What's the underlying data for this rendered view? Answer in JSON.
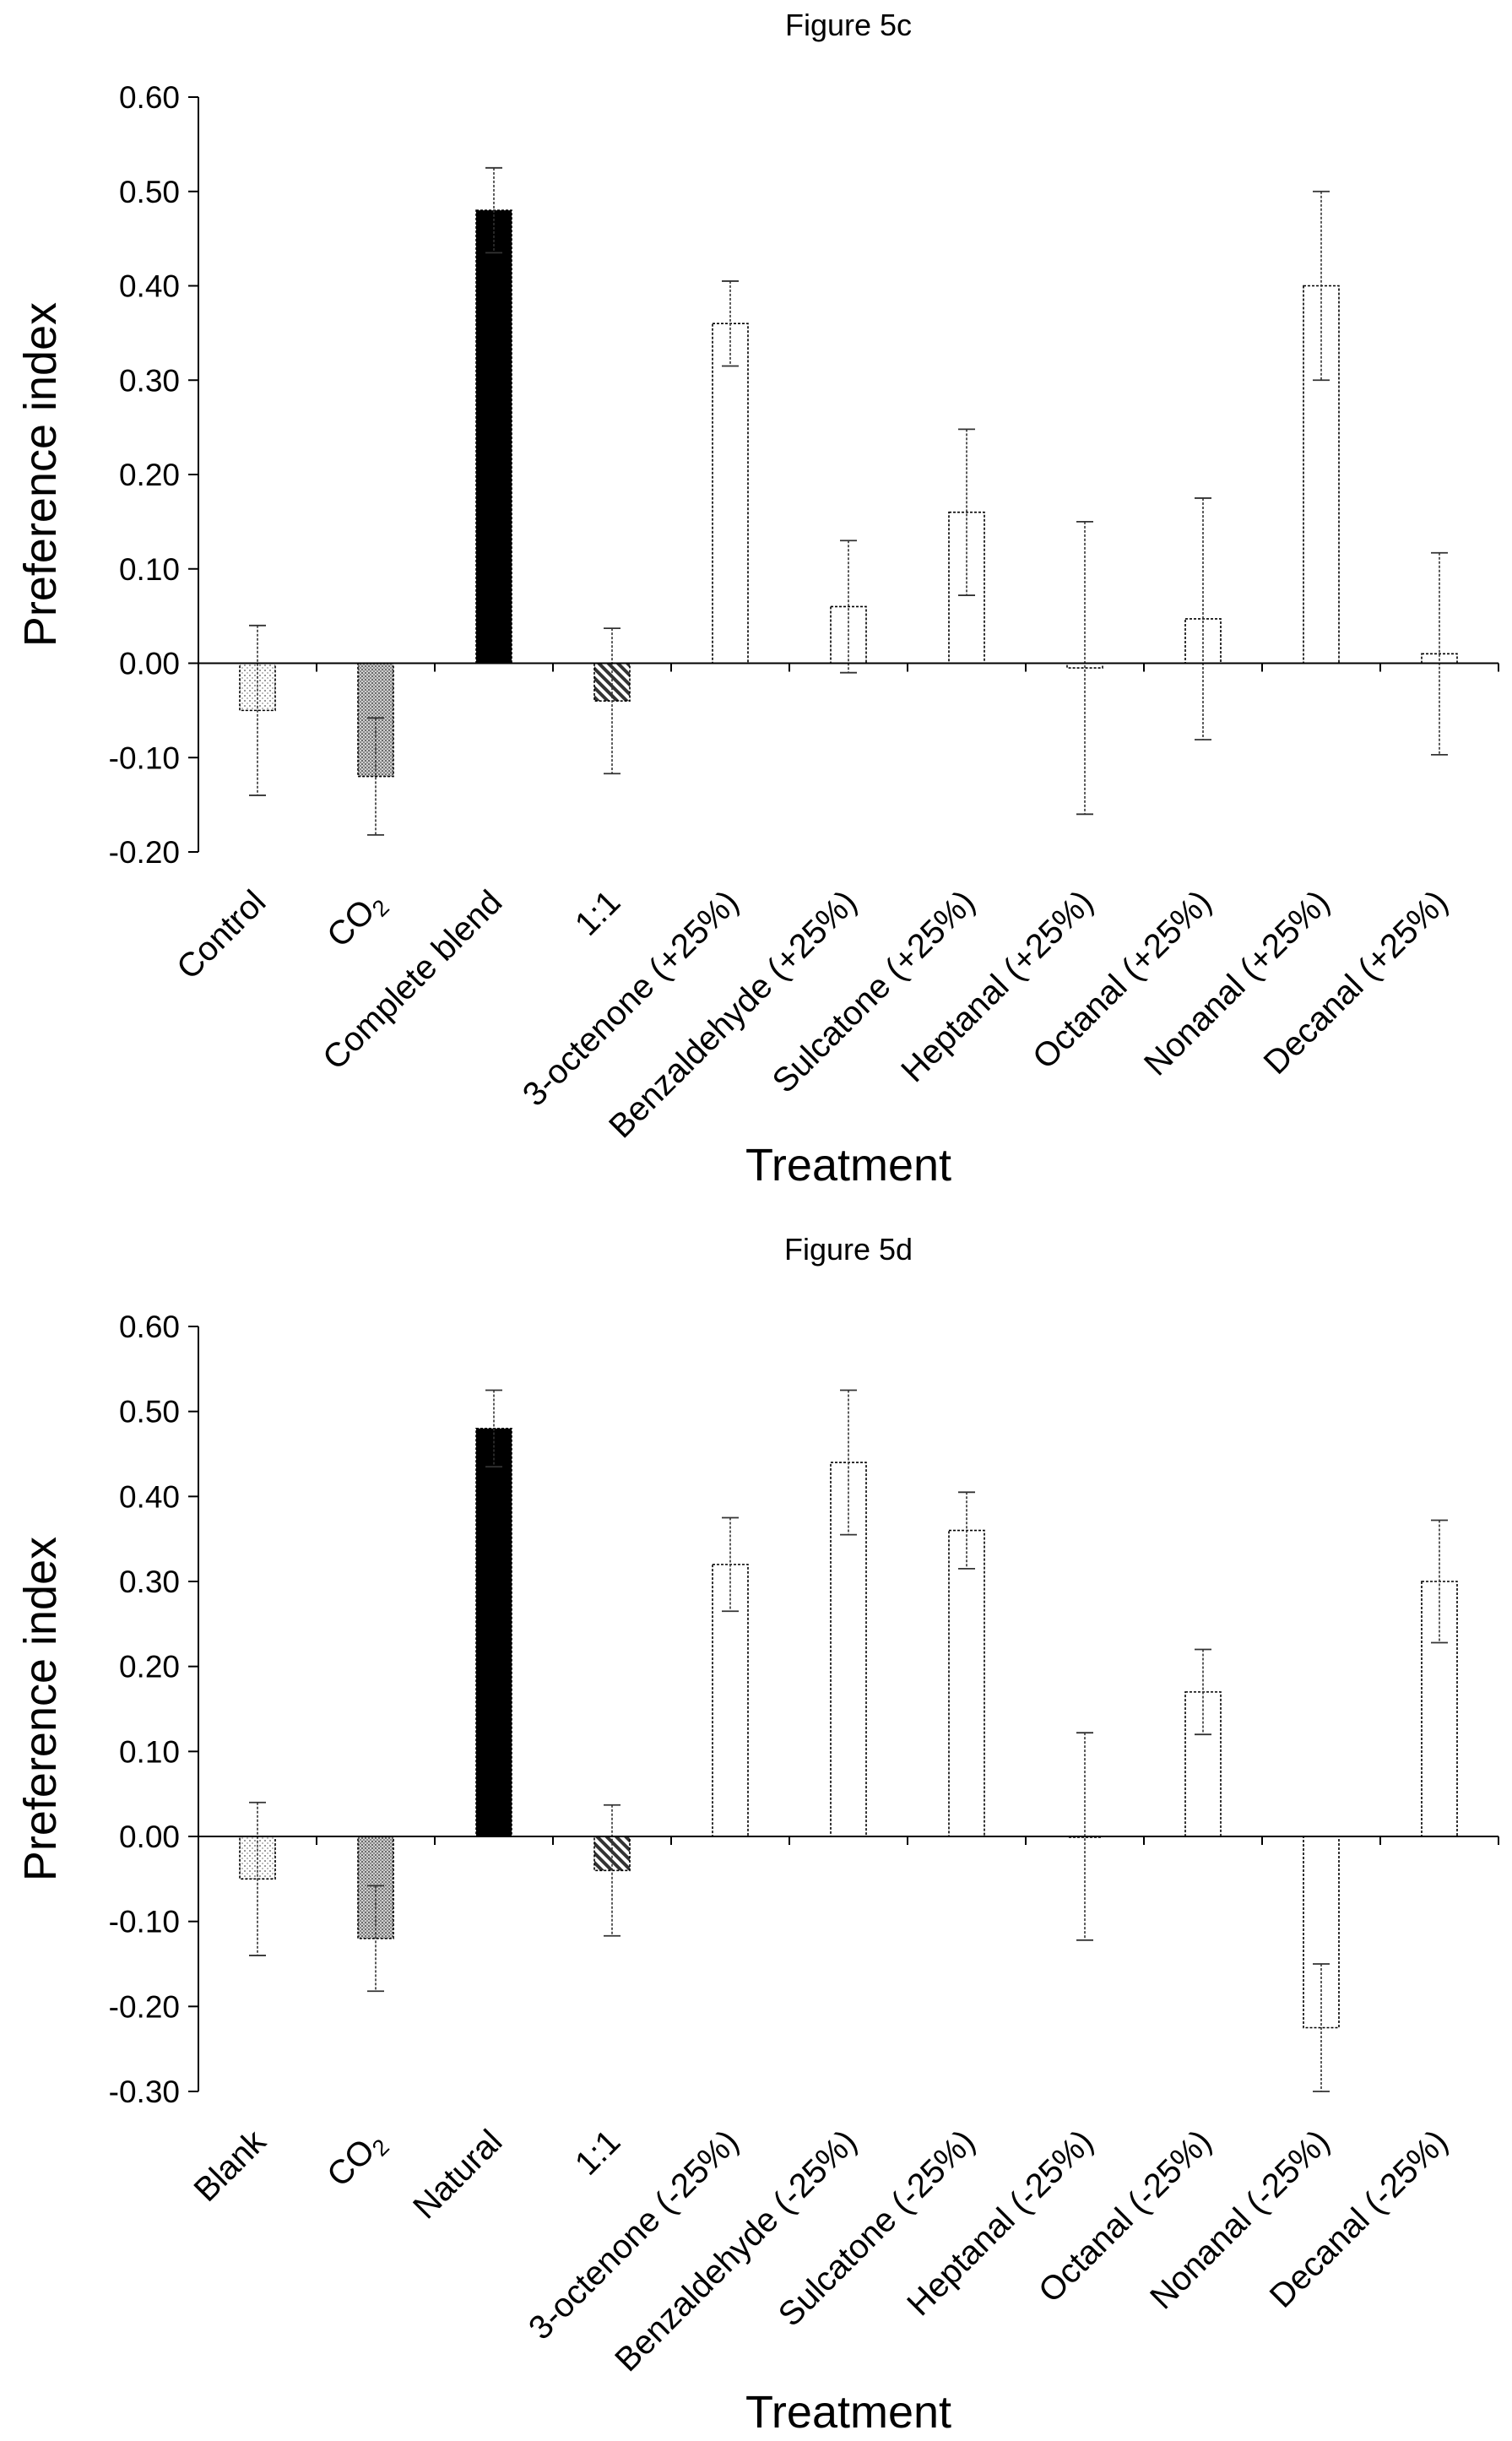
{
  "chart_data": [
    {
      "type": "bar",
      "title": "Figure 5c",
      "xlabel": "Treatment",
      "ylabel": "Preference index",
      "ylim": [
        -0.2,
        0.6
      ],
      "yticks": [
        "-0.20",
        "-0.10",
        "0.00",
        "0.10",
        "0.20",
        "0.30",
        "0.40",
        "0.50",
        "0.60"
      ],
      "categories": [
        "Control",
        "CO2",
        "Complete blend",
        "1:1",
        "3-octenone (+25%)",
        "Benzaldehyde (+25%)",
        "Sulcatone (+25%)",
        "Heptanal (+25%)",
        "Octanal (+25%)",
        "Nonanal (+25%)",
        "Decanal (+25%)"
      ],
      "values": [
        -0.05,
        -0.12,
        0.48,
        -0.04,
        0.36,
        0.06,
        0.16,
        -0.005,
        0.047,
        0.4,
        0.01
      ],
      "errors": [
        0.09,
        0.062,
        0.045,
        0.077,
        0.045,
        0.07,
        0.088,
        0.155,
        0.128,
        0.1,
        0.107
      ],
      "fills": [
        "light-dots",
        "dense-dots",
        "solid-black",
        "diagonal-hatch",
        "white",
        "white",
        "white",
        "white",
        "white",
        "white",
        "white"
      ]
    },
    {
      "type": "bar",
      "title": "Figure 5d",
      "xlabel": "Treatment",
      "ylabel": "Preference index",
      "ylim": [
        -0.3,
        0.6
      ],
      "yticks": [
        "-0.30",
        "-0.20",
        "-0.10",
        "0.00",
        "0.10",
        "0.20",
        "0.30",
        "0.40",
        "0.50",
        "0.60"
      ],
      "categories": [
        "Blank",
        "CO2",
        "Natural",
        "1:1",
        "3-octenone (-25%)",
        "Benzaldehyde (-25%)",
        "Sulcatone (-25%)",
        "Heptanal (-25%)",
        "Octanal (-25%)",
        "Nonanal (-25%)",
        "Decanal (-25%)"
      ],
      "values": [
        -0.05,
        -0.12,
        0.48,
        -0.04,
        0.32,
        0.44,
        0.36,
        0.0,
        0.17,
        -0.225,
        0.3
      ],
      "errors": [
        0.09,
        0.062,
        0.045,
        0.077,
        0.055,
        0.085,
        0.045,
        0.122,
        0.05,
        0.075,
        0.072
      ],
      "fills": [
        "light-dots",
        "dense-dots",
        "solid-black",
        "diagonal-hatch",
        "white",
        "white",
        "white",
        "white",
        "white",
        "white",
        "white"
      ]
    }
  ]
}
